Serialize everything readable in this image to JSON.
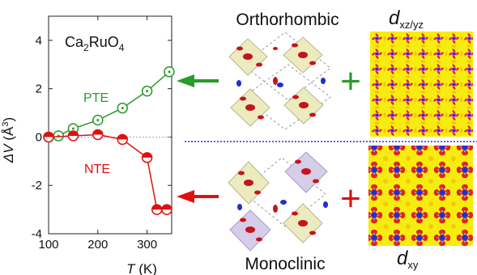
{
  "figure": {
    "phase_top": "Orthorhombic",
    "phase_bottom": "Monoclinic",
    "orbital_top": {
      "main": "d",
      "sub": "xz/yz"
    },
    "orbital_bottom": {
      "main": "d",
      "sub": "xy"
    },
    "plus_sign": "+",
    "colors": {
      "pte": "#2a9a2a",
      "nte": "#e01010",
      "dashed_separator": "#2233cc",
      "map_background": "#f7ec10",
      "map_ring": "#e2231a",
      "map_center": "#1e2fd6",
      "octahedron_fill_orthorhombic": "#ecebc0",
      "octahedron_fill_monoclinic": "#d6cde8",
      "ellipsoid": "#c4141c"
    }
  },
  "chart_data": {
    "type": "line",
    "compound": {
      "parts": [
        [
          "Ca",
          false
        ],
        [
          "2",
          true
        ],
        [
          "RuO",
          false
        ],
        [
          "4",
          true
        ]
      ]
    },
    "xlabel": {
      "symbol": "T",
      "unit": " (K)"
    },
    "ylabel": {
      "symbol": "ΔV",
      "unit": " (Å",
      "sup": "3",
      "close": ")"
    },
    "xlim": [
      100,
      350
    ],
    "ylim": [
      -4,
      5
    ],
    "xticks": [
      100,
      200,
      300
    ],
    "yticks": [
      -4,
      -2,
      0,
      2,
      4
    ],
    "series": [
      {
        "name": "PTE",
        "color": "#2a9a2a",
        "marker": "circle-dot",
        "x": [
          100,
          120,
          150,
          200,
          250,
          300,
          345
        ],
        "y": [
          0.0,
          0.05,
          0.35,
          0.7,
          1.2,
          1.9,
          2.7
        ]
      },
      {
        "name": "NTE",
        "color": "#e01010",
        "marker": "half-filled",
        "x": [
          100,
          150,
          200,
          250,
          300,
          320,
          340
        ],
        "y": [
          0.0,
          0.05,
          0.1,
          -0.1,
          -0.85,
          -3.0,
          -3.0
        ]
      }
    ]
  }
}
